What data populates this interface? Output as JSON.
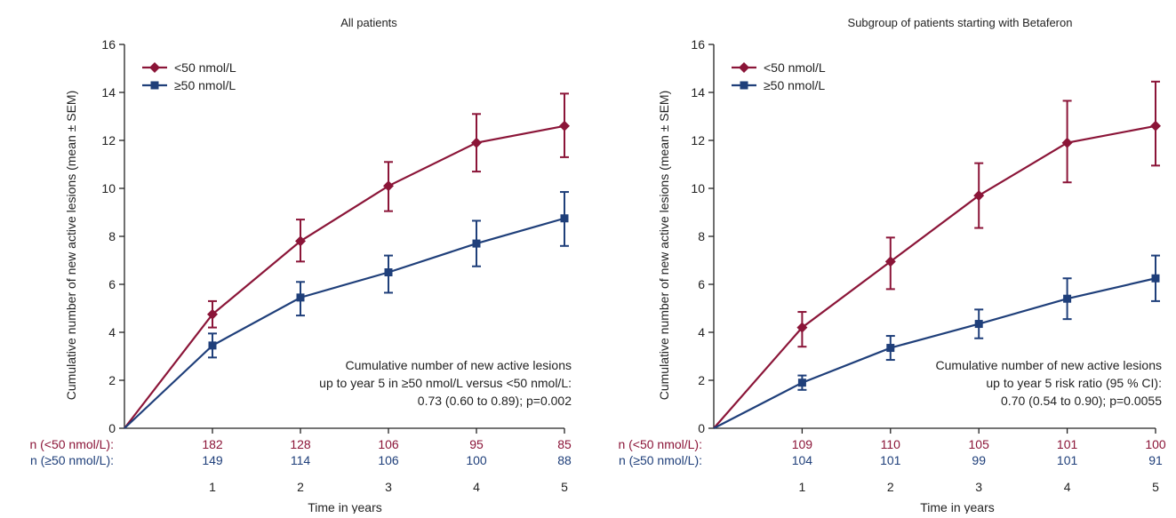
{
  "colors": {
    "series_lt50": "#8B1538",
    "series_ge50": "#1F3F7A",
    "axis": "#222222"
  },
  "chart_data": [
    {
      "type": "line",
      "title": "All patients",
      "xlabel": "Time in years",
      "ylabel": "Cumulative number of new active lesions (mean ± SEM)",
      "x": [
        0,
        1,
        2,
        3,
        4,
        5
      ],
      "xticks": [
        "1",
        "2",
        "3",
        "4",
        "5"
      ],
      "ylim": [
        0,
        16
      ],
      "yticks": [
        0,
        2,
        4,
        6,
        8,
        10,
        12,
        14,
        16
      ],
      "legend_position": "top-left",
      "series": [
        {
          "name": "<50 nmol/L",
          "marker": "diamond",
          "color": "#8B1538",
          "values": [
            0,
            4.75,
            7.8,
            10.1,
            11.9,
            12.6
          ],
          "sem_upper": [
            0,
            5.3,
            8.7,
            11.1,
            13.1,
            13.95
          ],
          "sem_lower": [
            0,
            4.2,
            6.95,
            9.05,
            10.7,
            11.3
          ]
        },
        {
          "name": "≥50 nmol/L",
          "marker": "square",
          "color": "#1F3F7A",
          "values": [
            0,
            3.45,
            5.45,
            6.5,
            7.7,
            8.75
          ],
          "sem_upper": [
            0,
            3.95,
            6.1,
            7.2,
            8.65,
            9.85
          ],
          "sem_lower": [
            0,
            2.95,
            4.7,
            5.65,
            6.75,
            7.6
          ]
        }
      ],
      "annotation": [
        "Cumulative number of new active lesions",
        "up to year 5 in ≥50 nmol/L versus <50 nmol/L:",
        "0.73 (0.60 to 0.89); p=0.002"
      ],
      "n_rows": [
        {
          "label": "n (<50 nmol/L):",
          "values": [
            "182",
            "128",
            "106",
            "95",
            "85"
          ],
          "color": "#8B1538"
        },
        {
          "label": "n (≥50 nmol/L):",
          "values": [
            "149",
            "114",
            "106",
            "100",
            "88"
          ],
          "color": "#1F3F7A"
        }
      ]
    },
    {
      "type": "line",
      "title": "Subgroup of patients starting with Betaferon",
      "xlabel": "Time in years",
      "ylabel": "Cumulative number of new active lesions (mean ± SEM)",
      "x": [
        0,
        1,
        2,
        3,
        4,
        5
      ],
      "xticks": [
        "1",
        "2",
        "3",
        "4",
        "5"
      ],
      "ylim": [
        0,
        16
      ],
      "yticks": [
        0,
        2,
        4,
        6,
        8,
        10,
        12,
        14,
        16
      ],
      "legend_position": "top-left",
      "series": [
        {
          "name": "<50 nmol/L",
          "marker": "diamond",
          "color": "#8B1538",
          "values": [
            0,
            4.2,
            6.95,
            9.7,
            11.9,
            12.6
          ],
          "sem_upper": [
            0,
            4.85,
            7.95,
            11.05,
            13.65,
            14.45
          ],
          "sem_lower": [
            0,
            3.4,
            5.8,
            8.35,
            10.25,
            10.95
          ]
        },
        {
          "name": "≥50 nmol/L",
          "marker": "square",
          "color": "#1F3F7A",
          "values": [
            0,
            1.9,
            3.35,
            4.35,
            5.4,
            6.25
          ],
          "sem_upper": [
            0,
            2.2,
            3.85,
            4.95,
            6.25,
            7.2
          ],
          "sem_lower": [
            0,
            1.6,
            2.85,
            3.75,
            4.55,
            5.3
          ]
        }
      ],
      "annotation": [
        "Cumulative number of new active lesions",
        "up to year 5 risk ratio (95 % CI):",
        "0.70 (0.54 to 0.90); p=0.0055"
      ],
      "n_rows": [
        {
          "label": "n (<50 nmol/L):",
          "values": [
            "109",
            "110",
            "105",
            "101",
            "100"
          ],
          "color": "#8B1538"
        },
        {
          "label": "n (≥50 nmol/L):",
          "values": [
            "104",
            "101",
            "99",
            "101",
            "91"
          ],
          "color": "#1F3F7A"
        }
      ]
    }
  ]
}
